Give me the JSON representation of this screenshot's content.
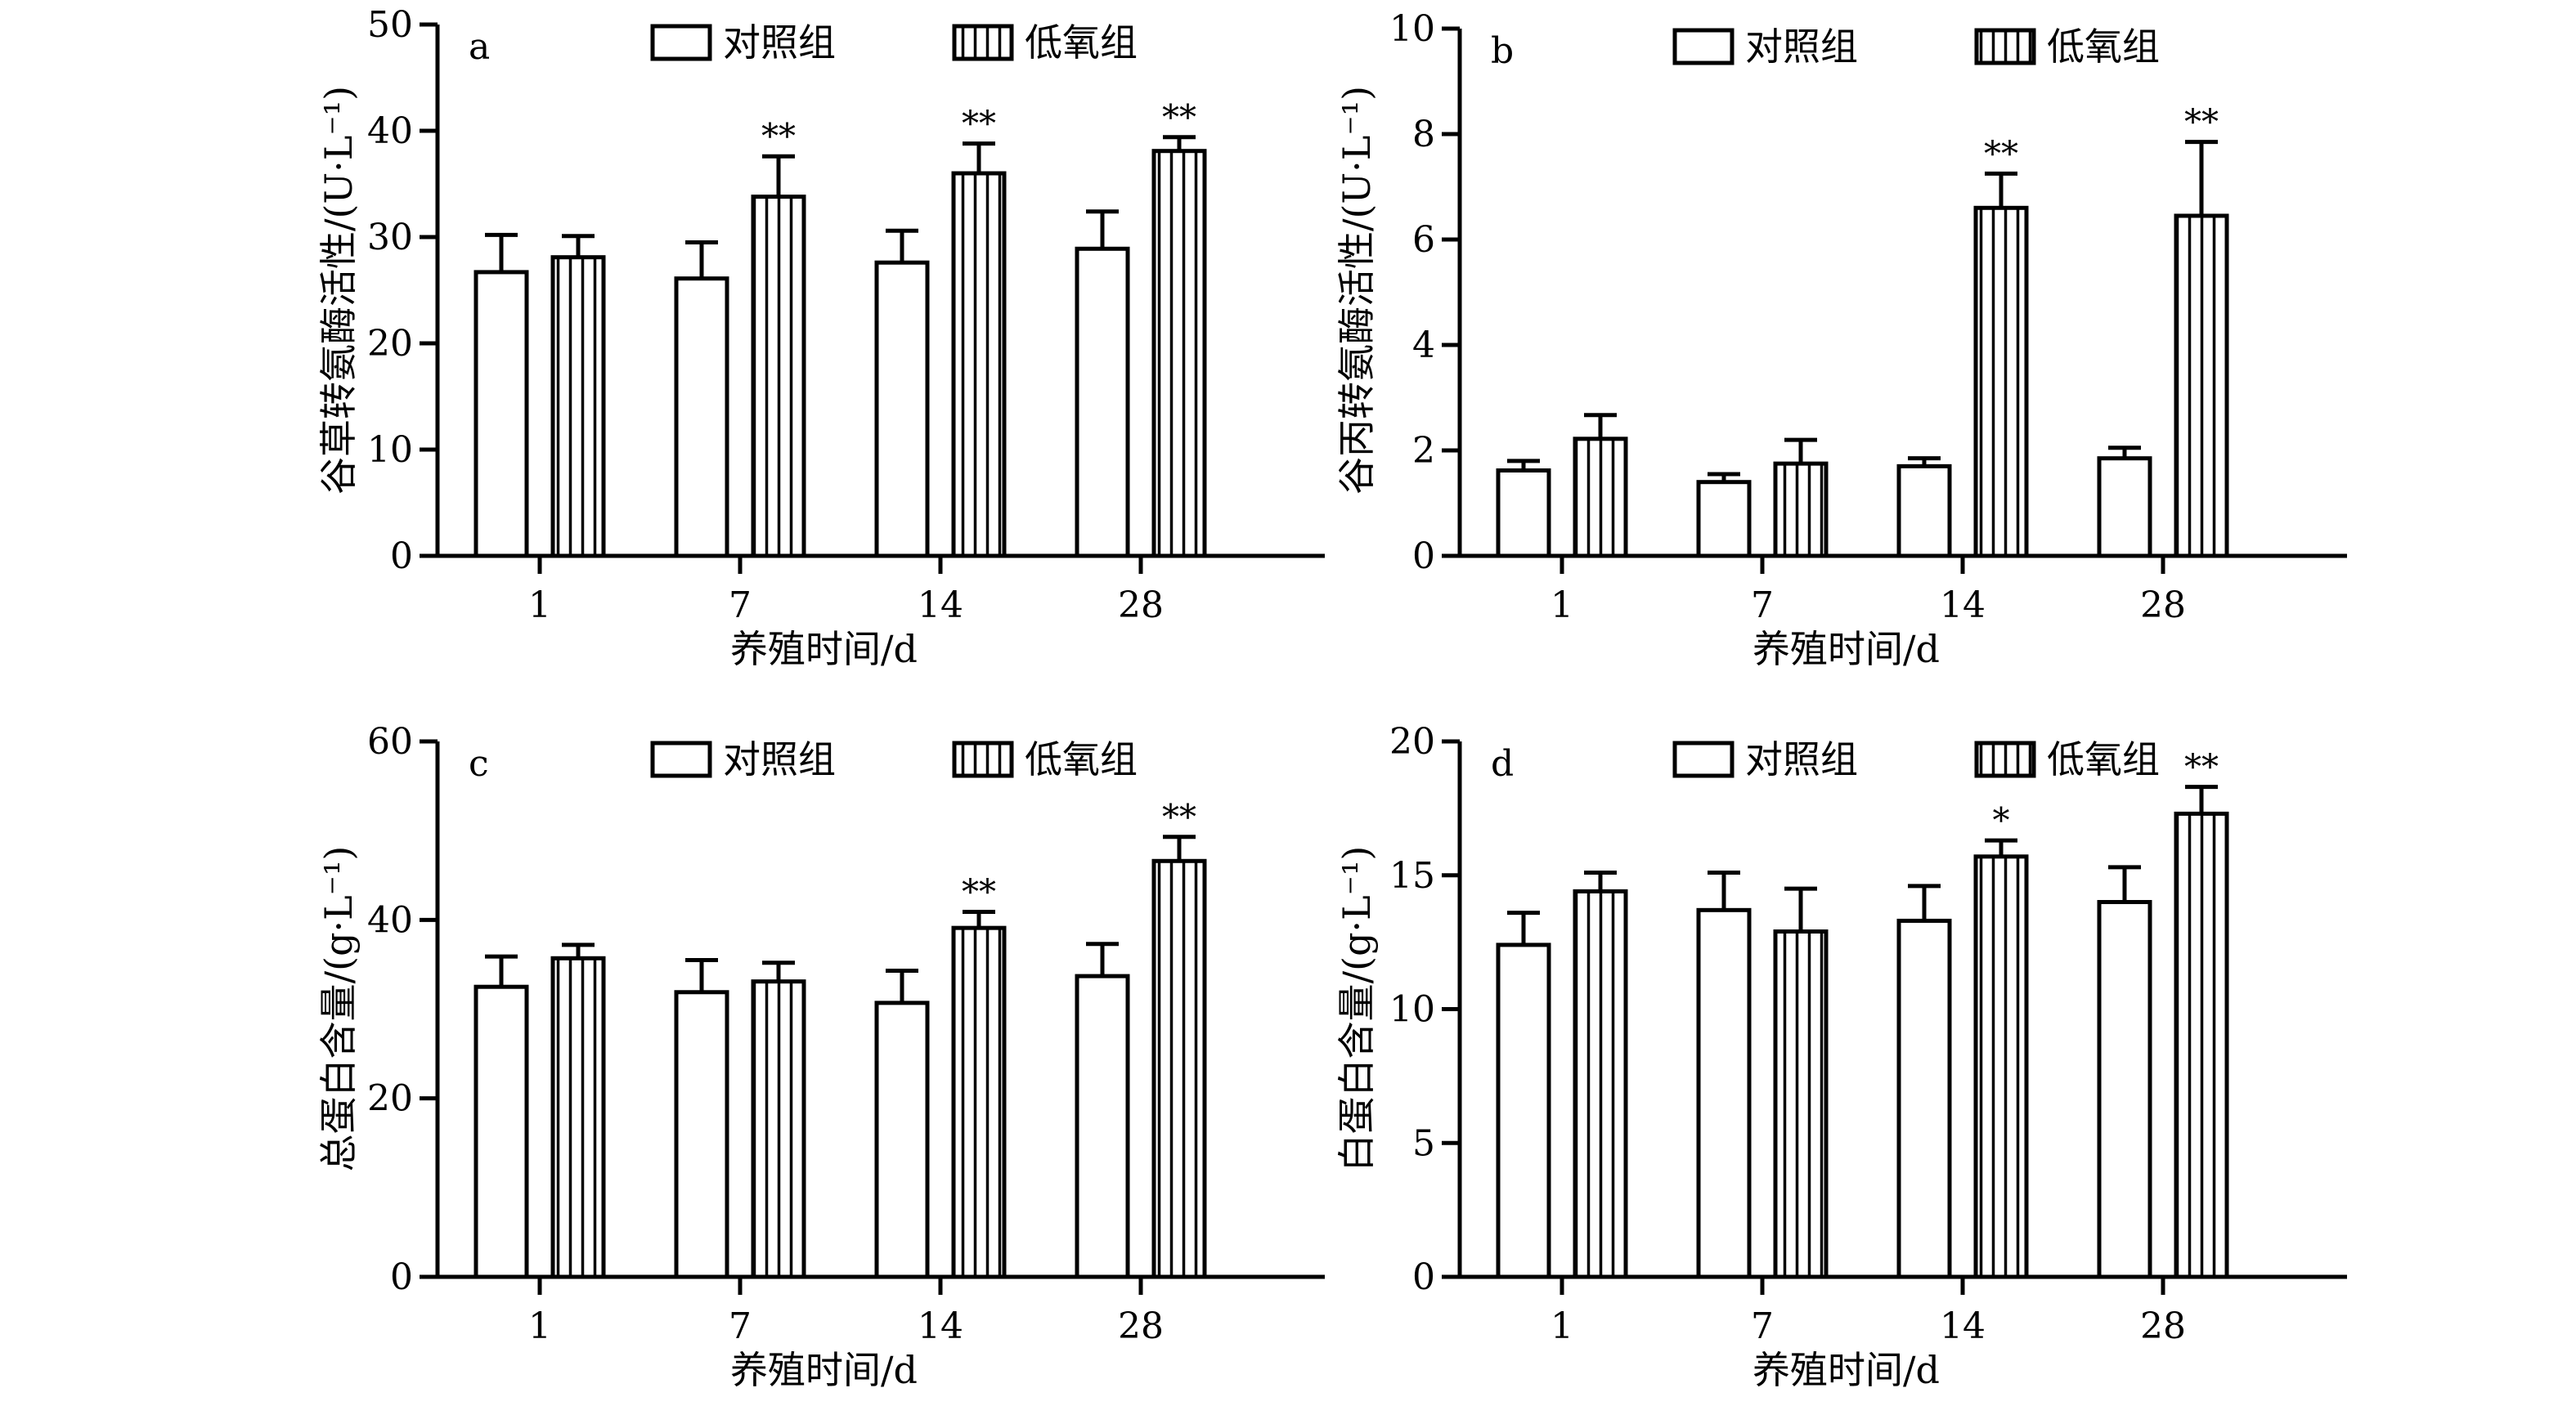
{
  "legend": {
    "control": "对照组",
    "hypoxia": "低氧组"
  },
  "colors": {
    "axis": "#000000",
    "bar_fill": "#ffffff",
    "bar_stroke": "#000000",
    "hatch": "#000000"
  },
  "chart_data": [
    {
      "panel": "a",
      "type": "bar",
      "categories": [
        "1",
        "7",
        "14",
        "28"
      ],
      "xlabel": "养殖时间/d",
      "ylabel": "谷草转氨酶活性/(U·L⁻¹)",
      "ylim": [
        0,
        50
      ],
      "yticks": [
        "0",
        "10",
        "20",
        "30",
        "40",
        "50"
      ],
      "series": [
        {
          "name": "对照组",
          "pattern": "plain",
          "values": [
            26.7,
            26.1,
            27.6,
            28.9
          ],
          "errors": [
            3.5,
            3.4,
            3.0,
            3.5
          ],
          "sig": [
            "",
            "",
            "",
            ""
          ]
        },
        {
          "name": "低氧组",
          "pattern": "vertical-hatch",
          "values": [
            28.1,
            33.8,
            36.0,
            38.1
          ],
          "errors": [
            2.0,
            3.8,
            2.8,
            1.3
          ],
          "sig": [
            "",
            "**",
            "**",
            "**"
          ]
        }
      ]
    },
    {
      "panel": "b",
      "type": "bar",
      "categories": [
        "1",
        "7",
        "14",
        "28"
      ],
      "xlabel": "养殖时间/d",
      "ylabel": "谷丙转氨酶活性/(U·L⁻¹)",
      "ylim": [
        0,
        10
      ],
      "yticks": [
        "0",
        "2",
        "4",
        "6",
        "8",
        "10"
      ],
      "series": [
        {
          "name": "对照组",
          "pattern": "plain",
          "values": [
            1.62,
            1.4,
            1.7,
            1.85
          ],
          "errors": [
            0.18,
            0.15,
            0.15,
            0.2
          ],
          "sig": [
            "",
            "",
            "",
            ""
          ]
        },
        {
          "name": "低氧组",
          "pattern": "vertical-hatch",
          "values": [
            2.22,
            1.75,
            6.6,
            6.45
          ],
          "errors": [
            0.45,
            0.45,
            0.65,
            1.4
          ],
          "sig": [
            "",
            "",
            "**",
            "**"
          ]
        }
      ]
    },
    {
      "panel": "c",
      "type": "bar",
      "categories": [
        "1",
        "7",
        "14",
        "28"
      ],
      "xlabel": "养殖时间/d",
      "ylabel": "总蛋白含量/(g·L⁻¹)",
      "ylim": [
        0,
        60
      ],
      "yticks": [
        "0",
        "20",
        "40",
        "60"
      ],
      "series": [
        {
          "name": "对照组",
          "pattern": "plain",
          "values": [
            32.5,
            31.9,
            30.7,
            33.7
          ],
          "errors": [
            3.4,
            3.6,
            3.6,
            3.6
          ],
          "sig": [
            "",
            "",
            "",
            ""
          ]
        },
        {
          "name": "低氧组",
          "pattern": "vertical-hatch",
          "values": [
            35.7,
            33.1,
            39.1,
            46.6
          ],
          "errors": [
            1.5,
            2.1,
            1.8,
            2.7
          ],
          "sig": [
            "",
            "",
            "**",
            "**"
          ]
        }
      ]
    },
    {
      "panel": "d",
      "type": "bar",
      "categories": [
        "1",
        "7",
        "14",
        "28"
      ],
      "xlabel": "养殖时间/d",
      "ylabel": "白蛋白含量/(g·L⁻¹)",
      "ylim": [
        0,
        20
      ],
      "yticks": [
        "0",
        "5",
        "10",
        "15",
        "20"
      ],
      "series": [
        {
          "name": "对照组",
          "pattern": "plain",
          "values": [
            12.4,
            13.7,
            13.3,
            14.0
          ],
          "errors": [
            1.2,
            1.4,
            1.3,
            1.3
          ],
          "sig": [
            "",
            "",
            "",
            ""
          ]
        },
        {
          "name": "低氧组",
          "pattern": "vertical-hatch",
          "values": [
            14.4,
            12.9,
            15.7,
            17.3
          ],
          "errors": [
            0.7,
            1.6,
            0.6,
            1.0
          ],
          "sig": [
            "",
            "",
            "*",
            "**"
          ]
        }
      ]
    }
  ]
}
